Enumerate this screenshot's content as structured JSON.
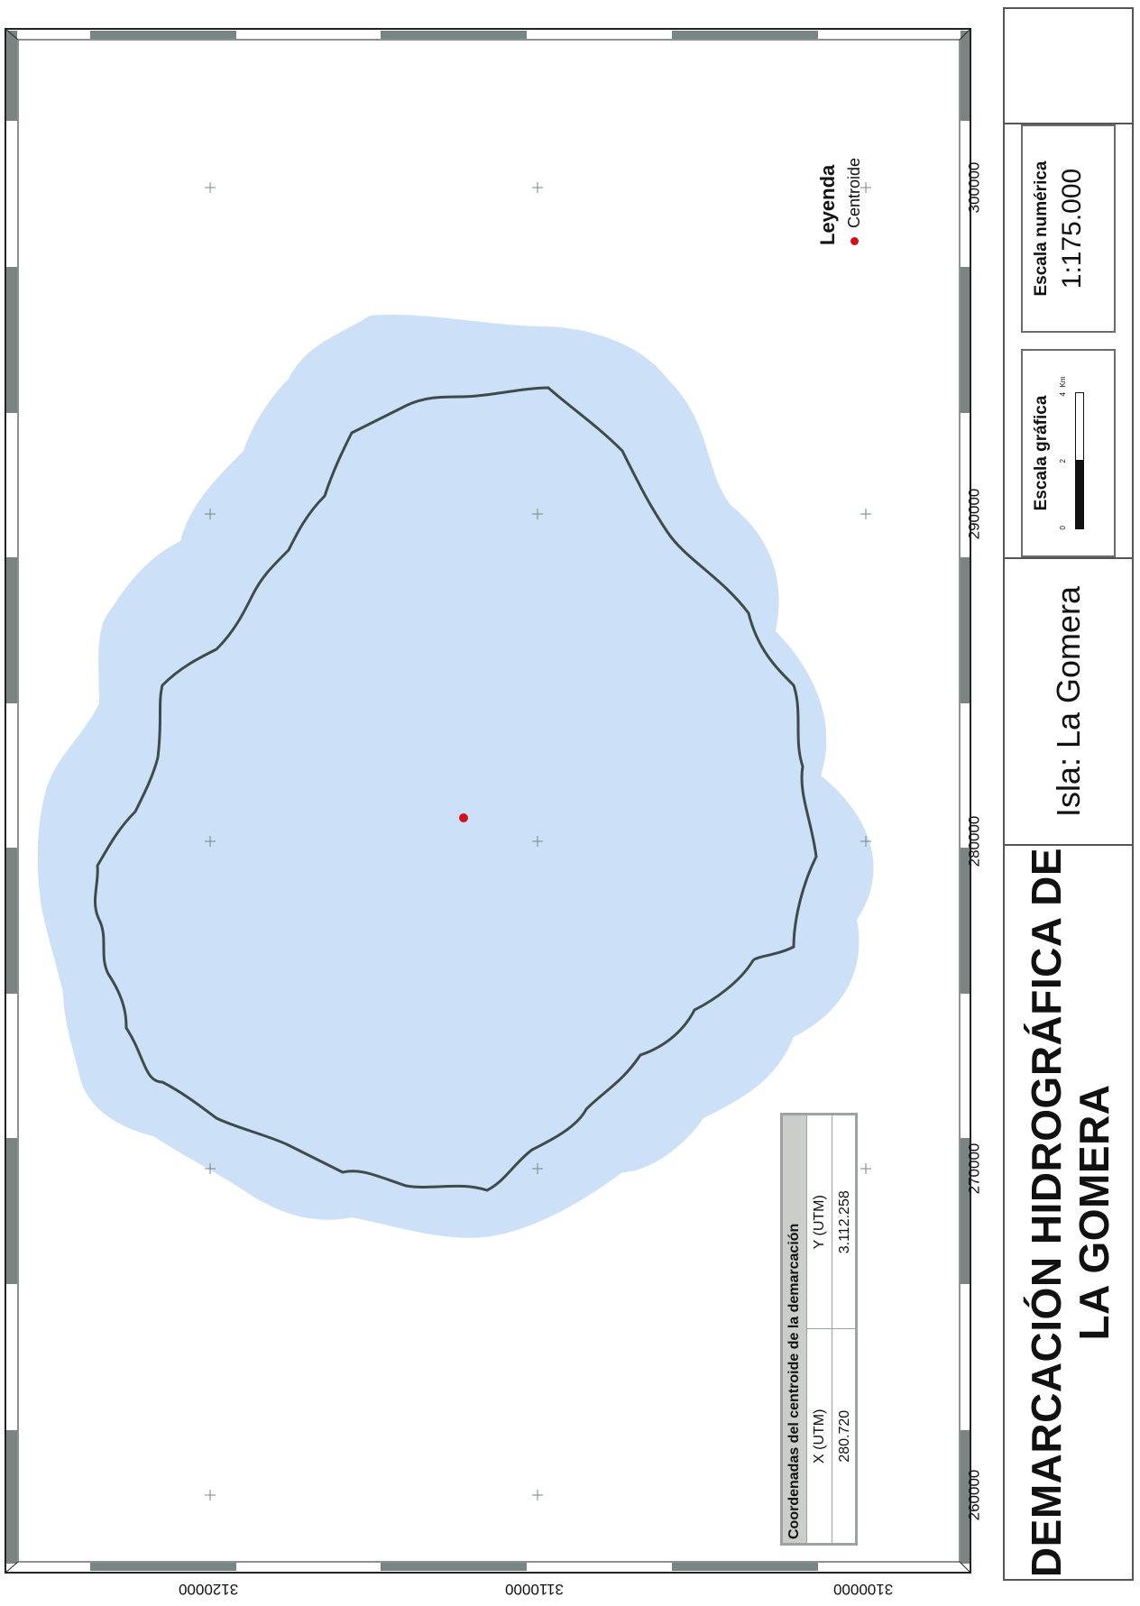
{
  "map": {
    "title_line1": "DEMARCACIÓN HIDROGRÁFICA DE",
    "title_line2": "LA GOMERA",
    "island_label": "Isla: La Gomera",
    "graphic_scale": {
      "label": "Escala gráfica",
      "ticks": [
        "0",
        "2",
        "4"
      ],
      "unit": "Km"
    },
    "numeric_scale": {
      "label": "Escala numérica",
      "value": "1:175.000"
    },
    "legend": {
      "title": "Leyenda",
      "entries": [
        {
          "label": "Centroide",
          "symbol": "red-dot",
          "color": "#d0121a"
        }
      ]
    },
    "centroid_table": {
      "title": "Coordenadas del centroide de la demarcación",
      "headers": [
        "X (UTM)",
        "Y (UTM)"
      ],
      "values": [
        "280.720",
        "3.112.258"
      ]
    },
    "x_axis_ticks": [
      "260000",
      "270000",
      "280000",
      "290000",
      "300000"
    ],
    "y_axis_ticks": [
      "3120000",
      "3110000",
      "3100000"
    ],
    "colors": {
      "water_buffer": "#cce0f7",
      "coastline": "#3f4a4a",
      "centroid": "#d0121a",
      "frame_band": "#7a8583"
    }
  }
}
